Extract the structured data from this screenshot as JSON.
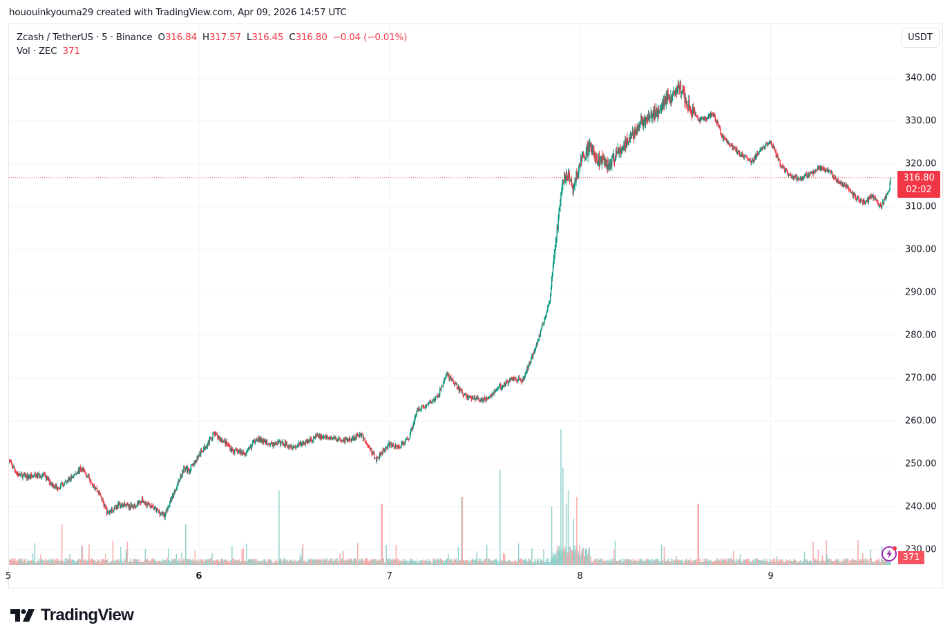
{
  "attribution": "hououinkyouma29 created with TradingView.com, Apr 09, 2026 14:57 UTC",
  "legend": {
    "symbol": "Zcash / TetherUS · 5 · Binance",
    "o_label": "O",
    "o_value": "316.84",
    "h_label": "H",
    "h_value": "317.57",
    "l_label": "L",
    "l_value": "316.45",
    "c_label": "C",
    "c_value": "316.80",
    "change": "−0.04 (−0.01%)",
    "vol_label": "Vol · ZEC",
    "vol_value": "371"
  },
  "price_scale": {
    "currency_button": "USDT",
    "last_price": "316.80",
    "countdown": "02:02",
    "volume_tag": "371"
  },
  "logo": {
    "text": "TradingView"
  },
  "colors": {
    "up": "#089981",
    "down": "#f23645",
    "vol_up": "#92d2cc",
    "vol_down": "#f7a9a7",
    "grid": "#f0f3fa",
    "price_line": "#f23645"
  },
  "chart_data": {
    "type": "candlestick",
    "title": "Zcash / TetherUS · 5 · Binance",
    "interval": "5",
    "exchange": "Binance",
    "xlabel": "",
    "ylabel": "USDT",
    "x_tick_labels": [
      "5",
      "6",
      "7",
      "8",
      "9"
    ],
    "y_tick_labels": [
      "230.00",
      "240.00",
      "250.00",
      "260.00",
      "270.00",
      "280.00",
      "290.00",
      "300.00",
      "310.00",
      "320.00",
      "330.00",
      "340.00"
    ],
    "ylim": [
      228,
      346
    ],
    "grid": true,
    "last": {
      "open": 316.84,
      "high": 317.57,
      "low": 316.45,
      "close": 316.8,
      "change": -0.04,
      "change_pct": -0.01,
      "volume": 371
    },
    "price_path": {
      "description": "approximate close-price waypoints; x = day position (5.0 = left edge)",
      "x": [
        5.0,
        5.05,
        5.1,
        5.18,
        5.25,
        5.3,
        5.38,
        5.42,
        5.48,
        5.52,
        5.58,
        5.65,
        5.7,
        5.75,
        5.82,
        5.88,
        5.92,
        5.95,
        6.0,
        6.08,
        6.14,
        6.18,
        6.25,
        6.3,
        6.38,
        6.43,
        6.5,
        6.58,
        6.62,
        6.7,
        6.78,
        6.85,
        6.93,
        6.96,
        7.0,
        7.05,
        7.1,
        7.15,
        7.19,
        7.2,
        7.25,
        7.3,
        7.38,
        7.42,
        7.5,
        7.58,
        7.65,
        7.7,
        7.78,
        7.84,
        7.88,
        7.9,
        7.91,
        7.93,
        7.96,
        8.0,
        8.05,
        8.1,
        8.15,
        8.2,
        8.25,
        8.32,
        8.38,
        8.45,
        8.5,
        8.52,
        8.55,
        8.58,
        8.62,
        8.7,
        8.75,
        8.8,
        8.85,
        8.9,
        8.95,
        9.0,
        9.05,
        9.08,
        9.1,
        9.15,
        9.22,
        9.25,
        9.3,
        9.35,
        9.4,
        9.45,
        9.5,
        9.53,
        9.58,
        9.62,
        9.63
      ],
      "close": [
        251.0,
        247.5,
        247.0,
        247.5,
        244.5,
        245.5,
        249.0,
        247.0,
        243.0,
        238.5,
        240.5,
        240.0,
        241.5,
        240.0,
        238.0,
        244.5,
        249.0,
        248.5,
        252.0,
        257.0,
        255.0,
        253.0,
        252.5,
        256.0,
        254.5,
        255.0,
        254.0,
        255.5,
        256.5,
        256.0,
        255.5,
        257.0,
        251.0,
        253.0,
        254.5,
        254.0,
        256.0,
        263.0,
        263.5,
        264.0,
        265.5,
        271.0,
        266.5,
        265.5,
        265.0,
        268.0,
        270.0,
        269.5,
        279.0,
        288.0,
        305.0,
        313.0,
        316.0,
        318.0,
        314.0,
        320.0,
        324.0,
        321.0,
        319.5,
        323.0,
        325.0,
        330.0,
        331.0,
        335.0,
        336.5,
        338.5,
        335.0,
        333.0,
        330.0,
        331.5,
        326.0,
        324.0,
        322.0,
        320.5,
        323.5,
        325.0,
        320.0,
        318.0,
        317.0,
        316.5,
        318.0,
        319.0,
        318.5,
        316.0,
        314.5,
        312.0,
        311.0,
        312.5,
        310.0,
        314.0,
        316.8
      ]
    },
    "volume": {
      "description": "approximate relative volume, notable spikes",
      "spikes": [
        {
          "x": 5.28,
          "rel": 0.3
        },
        {
          "x": 5.93,
          "rel": 0.3
        },
        {
          "x": 6.42,
          "rel": 0.55
        },
        {
          "x": 6.96,
          "rel": 0.45
        },
        {
          "x": 7.38,
          "rel": 0.5
        },
        {
          "x": 7.58,
          "rel": 0.7
        },
        {
          "x": 7.9,
          "rel": 1.0
        },
        {
          "x": 7.91,
          "rel": 0.72
        },
        {
          "x": 8.62,
          "rel": 0.45
        }
      ]
    }
  }
}
